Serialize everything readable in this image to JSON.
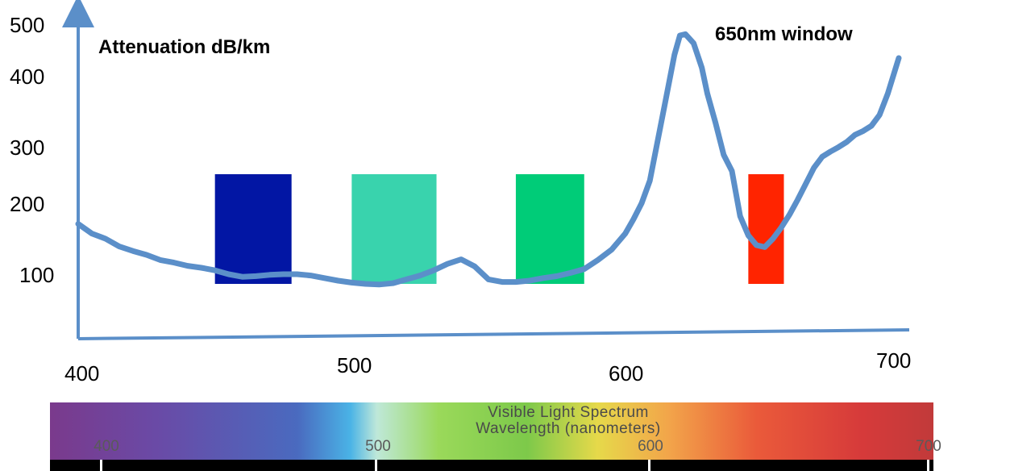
{
  "chart_data": {
    "type": "line",
    "ylabel": "Attenuation dB/km",
    "annotation": "650nm window",
    "x_ticks": [
      "400",
      "500",
      "600",
      "700"
    ],
    "y_ticks": [
      "500",
      "400",
      "300",
      "200",
      "100"
    ],
    "xlim": [
      400,
      700
    ],
    "ylim": [
      0,
      500
    ],
    "line_color": "#5b8fc9",
    "series": [
      {
        "x": [
          400,
          405,
          410,
          415,
          420,
          425,
          430,
          435,
          440,
          445,
          450,
          455,
          460,
          465,
          470,
          475,
          480,
          485,
          490,
          495,
          500,
          505,
          510,
          515,
          520,
          525,
          530,
          535,
          540,
          545,
          550,
          555,
          560,
          565,
          570,
          575,
          580,
          585,
          590,
          595,
          600,
          603,
          606,
          609,
          612,
          615,
          618,
          620,
          622,
          625,
          628,
          630,
          633,
          636,
          639,
          642,
          645,
          648,
          651,
          654,
          657,
          660,
          663,
          666,
          669,
          672,
          675,
          678,
          681,
          684,
          687,
          690,
          693,
          696,
          700
        ],
        "y": [
          178,
          163,
          155,
          143,
          136,
          130,
          122,
          118,
          113,
          110,
          106,
          100,
          96,
          97,
          99,
          100,
          100,
          98,
          94,
          90,
          87,
          85,
          84,
          86,
          92,
          98,
          106,
          116,
          123,
          112,
          92,
          88,
          88,
          90,
          94,
          97,
          102,
          108,
          122,
          138,
          163,
          185,
          210,
          245,
          310,
          375,
          440,
          470,
          472,
          458,
          420,
          380,
          335,
          285,
          260,
          190,
          160,
          145,
          142,
          155,
          172,
          192,
          215,
          240,
          265,
          282,
          290,
          297,
          305,
          316,
          322,
          330,
          347,
          380,
          435
        ]
      }
    ],
    "bars": [
      {
        "x0": 450,
        "x1": 478,
        "y0": 85,
        "y1": 255,
        "color": "#0216a4"
      },
      {
        "x0": 500,
        "x1": 531,
        "y0": 85,
        "y1": 255,
        "color": "#39d3ad"
      },
      {
        "x0": 560,
        "x1": 585,
        "y0": 85,
        "y1": 255,
        "color": "#00cc78"
      },
      {
        "x0": 645,
        "x1": 658,
        "y0": 85,
        "y1": 255,
        "color": "#ff2400"
      }
    ]
  },
  "spectrum": {
    "title_line1": "Visible Light Spectrum",
    "title_line2": "Wavelength (nanometers)",
    "ticks": [
      "400",
      "500",
      "600",
      "700"
    ]
  }
}
